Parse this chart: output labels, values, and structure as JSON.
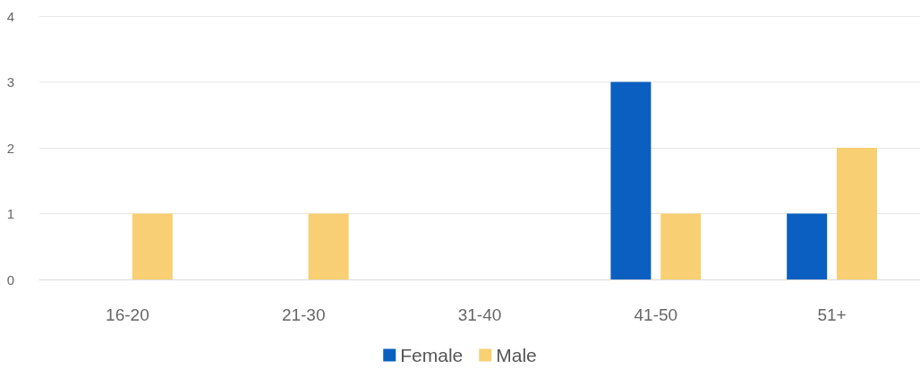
{
  "chart_data": {
    "type": "bar",
    "categories": [
      "16-20",
      "21-30",
      "31-40",
      "41-50",
      "51+"
    ],
    "series": [
      {
        "name": "Female",
        "color": "#0a5fc0",
        "values": [
          0,
          0,
          0,
          3,
          1
        ]
      },
      {
        "name": "Male",
        "color": "#f8cf72",
        "values": [
          1,
          1,
          0,
          1,
          2
        ]
      }
    ],
    "ylim": [
      0,
      4
    ],
    "yticks": [
      0,
      1,
      2,
      3,
      4
    ],
    "grid": "y",
    "legend": "bottom"
  }
}
